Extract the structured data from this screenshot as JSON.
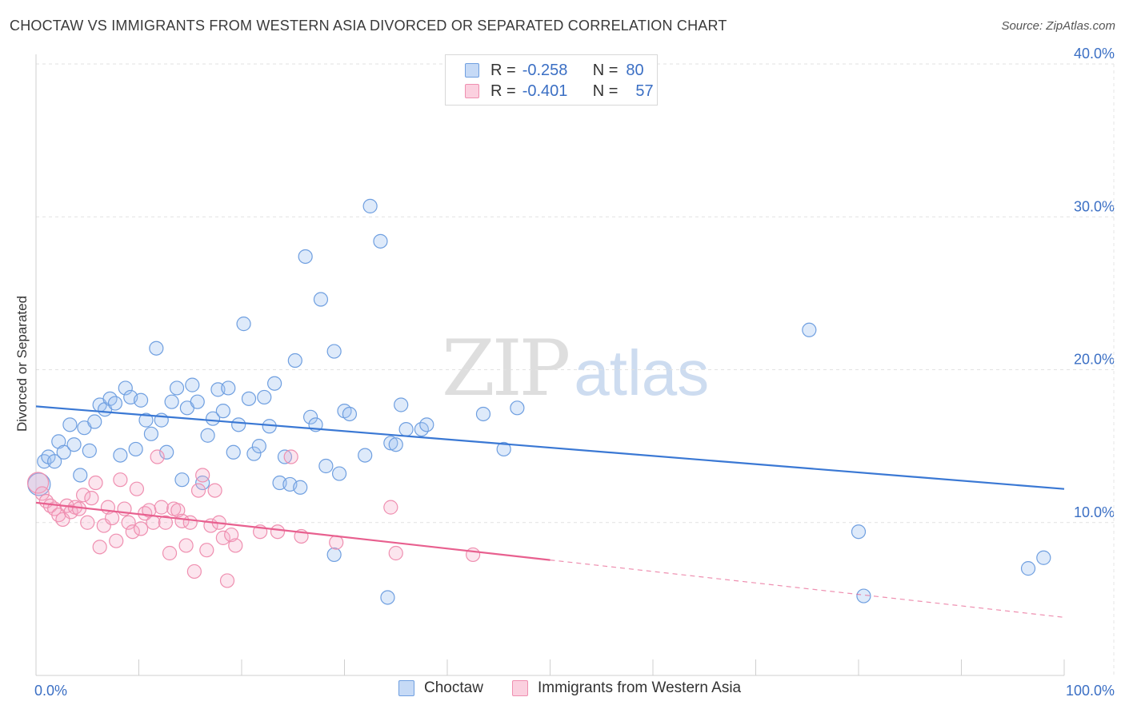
{
  "header": {
    "title": "CHOCTAW VS IMMIGRANTS FROM WESTERN ASIA DIVORCED OR SEPARATED CORRELATION CHART",
    "source": "Source: ZipAtlas.com"
  },
  "watermark": {
    "zip": "ZIP",
    "atlas": "atlas"
  },
  "legend_top": {
    "rows": [
      {
        "r_label": "R =",
        "r_value": "-0.258",
        "n_label": "N =",
        "n_value": "80",
        "color": "#6f9fe0"
      },
      {
        "r_label": "R =",
        "r_value": "-0.401",
        "n_label": "N =",
        "n_value": "57",
        "color": "#ef8fb0"
      }
    ]
  },
  "legend_bottom": {
    "items": [
      {
        "label": "Choctaw",
        "color": "#6f9fe0"
      },
      {
        "label": "Immigrants from Western Asia",
        "color": "#ef8fb0"
      }
    ]
  },
  "chart_data": {
    "type": "scatter",
    "title": "CHOCTAW VS IMMIGRANTS FROM WESTERN ASIA DIVORCED OR SEPARATED CORRELATION CHART",
    "xlabel": "",
    "ylabel": "Divorced or Separated",
    "xlim": [
      0,
      100
    ],
    "ylim": [
      0,
      40
    ],
    "x_tick_labels": [
      "0.0%",
      "100.0%"
    ],
    "y_ticks": [
      10,
      20,
      30,
      40
    ],
    "y_tick_labels": [
      "10.0%",
      "20.0%",
      "30.0%",
      "40.0%"
    ],
    "grid": true,
    "legend_placement": "top-center",
    "colors": {
      "choctaw": "#3a78d4",
      "western_asia": "#e8608f",
      "axis_text": "#3b6fc4"
    },
    "series": [
      {
        "name": "Choctaw",
        "color": "#6f9fe0",
        "trend": {
          "x": [
            0,
            100
          ],
          "y": [
            17.6,
            12.2
          ],
          "dashed_from": null
        },
        "points": [
          [
            0.3,
            12.5
          ],
          [
            0.8,
            14.0
          ],
          [
            1.2,
            14.3
          ],
          [
            1.8,
            14.0
          ],
          [
            2.2,
            15.3
          ],
          [
            2.7,
            14.6
          ],
          [
            3.3,
            16.4
          ],
          [
            3.7,
            15.1
          ],
          [
            4.3,
            13.1
          ],
          [
            4.7,
            16.2
          ],
          [
            5.2,
            14.7
          ],
          [
            5.7,
            16.6
          ],
          [
            6.2,
            17.7
          ],
          [
            6.7,
            17.4
          ],
          [
            7.2,
            18.1
          ],
          [
            7.7,
            17.8
          ],
          [
            8.2,
            14.4
          ],
          [
            8.7,
            18.8
          ],
          [
            9.2,
            18.2
          ],
          [
            9.7,
            14.8
          ],
          [
            10.2,
            18.0
          ],
          [
            10.7,
            16.7
          ],
          [
            11.2,
            15.8
          ],
          [
            11.7,
            21.4
          ],
          [
            12.2,
            16.7
          ],
          [
            12.7,
            14.6
          ],
          [
            13.2,
            17.9
          ],
          [
            13.7,
            18.8
          ],
          [
            14.2,
            12.8
          ],
          [
            14.7,
            17.5
          ],
          [
            15.2,
            19.0
          ],
          [
            15.7,
            17.9
          ],
          [
            16.2,
            12.6
          ],
          [
            16.7,
            15.7
          ],
          [
            17.2,
            16.8
          ],
          [
            17.7,
            18.7
          ],
          [
            18.2,
            17.3
          ],
          [
            18.7,
            18.8
          ],
          [
            19.2,
            14.6
          ],
          [
            19.7,
            16.4
          ],
          [
            20.2,
            23.0
          ],
          [
            20.7,
            18.1
          ],
          [
            21.2,
            14.5
          ],
          [
            21.7,
            15.0
          ],
          [
            22.2,
            18.2
          ],
          [
            22.7,
            16.3
          ],
          [
            23.2,
            19.1
          ],
          [
            23.7,
            12.6
          ],
          [
            24.2,
            14.3
          ],
          [
            24.7,
            12.5
          ],
          [
            25.2,
            20.6
          ],
          [
            25.7,
            12.3
          ],
          [
            26.2,
            27.4
          ],
          [
            26.7,
            16.9
          ],
          [
            27.2,
            16.4
          ],
          [
            27.7,
            24.6
          ],
          [
            28.2,
            13.7
          ],
          [
            29.0,
            21.2
          ],
          [
            29.5,
            13.2
          ],
          [
            30.0,
            17.3
          ],
          [
            30.5,
            17.1
          ],
          [
            32.0,
            14.4
          ],
          [
            32.5,
            30.7
          ],
          [
            33.5,
            28.4
          ],
          [
            34.5,
            15.2
          ],
          [
            35.0,
            15.1
          ],
          [
            35.5,
            17.7
          ],
          [
            36.0,
            16.1
          ],
          [
            37.5,
            16.1
          ],
          [
            38.0,
            16.4
          ],
          [
            43.5,
            17.1
          ],
          [
            45.5,
            14.8
          ],
          [
            46.8,
            17.5
          ],
          [
            29.0,
            7.9
          ],
          [
            34.2,
            5.1
          ],
          [
            75.2,
            22.6
          ],
          [
            80.0,
            9.4
          ],
          [
            80.5,
            5.2
          ],
          [
            96.5,
            7.0
          ],
          [
            98.0,
            7.7
          ]
        ]
      },
      {
        "name": "Immigrants from Western Asia",
        "color": "#ef8fb0",
        "trend": {
          "x": [
            0,
            100
          ],
          "y": [
            11.3,
            3.8
          ],
          "dashed_from": 50
        },
        "points": [
          [
            0.2,
            12.6
          ],
          [
            0.6,
            11.9
          ],
          [
            1.0,
            11.4
          ],
          [
            1.4,
            11.1
          ],
          [
            1.8,
            10.9
          ],
          [
            2.2,
            10.5
          ],
          [
            2.6,
            10.2
          ],
          [
            3.0,
            11.1
          ],
          [
            3.4,
            10.7
          ],
          [
            3.8,
            11.0
          ],
          [
            4.2,
            10.9
          ],
          [
            4.6,
            11.8
          ],
          [
            5.0,
            10.0
          ],
          [
            5.4,
            11.6
          ],
          [
            5.8,
            12.6
          ],
          [
            6.2,
            8.4
          ],
          [
            6.6,
            9.8
          ],
          [
            7.0,
            11.0
          ],
          [
            7.4,
            10.3
          ],
          [
            7.8,
            8.8
          ],
          [
            8.2,
            12.8
          ],
          [
            8.6,
            10.9
          ],
          [
            9.0,
            10.0
          ],
          [
            9.4,
            9.4
          ],
          [
            9.8,
            12.2
          ],
          [
            10.2,
            9.6
          ],
          [
            10.6,
            10.6
          ],
          [
            11.0,
            10.8
          ],
          [
            11.4,
            10.0
          ],
          [
            11.8,
            14.3
          ],
          [
            12.2,
            11.0
          ],
          [
            12.6,
            10.0
          ],
          [
            13.0,
            8.0
          ],
          [
            13.4,
            10.9
          ],
          [
            13.8,
            10.8
          ],
          [
            14.2,
            10.1
          ],
          [
            14.6,
            8.5
          ],
          [
            15.0,
            10.0
          ],
          [
            15.4,
            6.8
          ],
          [
            15.8,
            12.1
          ],
          [
            16.2,
            13.1
          ],
          [
            16.6,
            8.2
          ],
          [
            17.0,
            9.8
          ],
          [
            17.4,
            12.1
          ],
          [
            17.8,
            10.0
          ],
          [
            18.2,
            9.0
          ],
          [
            18.6,
            6.2
          ],
          [
            19.0,
            9.2
          ],
          [
            19.4,
            8.5
          ],
          [
            21.8,
            9.4
          ],
          [
            23.5,
            9.4
          ],
          [
            24.8,
            14.3
          ],
          [
            25.8,
            9.1
          ],
          [
            29.2,
            8.7
          ],
          [
            35.0,
            8.0
          ],
          [
            42.5,
            7.9
          ],
          [
            34.5,
            11.0
          ]
        ]
      }
    ]
  }
}
